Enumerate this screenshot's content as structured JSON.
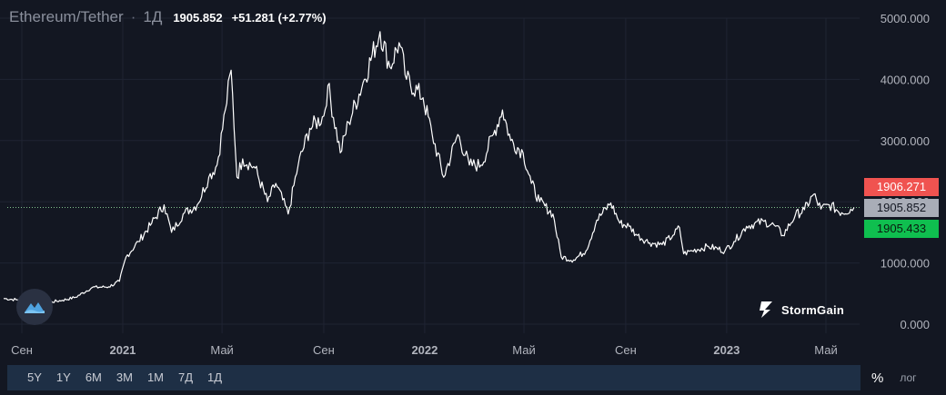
{
  "legend": {
    "symbol": "Ethereum/Tether",
    "separator": "·",
    "interval": "1Д",
    "price": "1905.852",
    "change": "+51.281 (+2.77%)"
  },
  "price_tags": {
    "ask": "1906.271",
    "last": "1905.852",
    "bid": "1905.433"
  },
  "colors": {
    "background": "#131722",
    "line": "#ffffff",
    "grid": "#1f2433",
    "ask": "#f05350",
    "bid": "#0fbf4f",
    "last": "#a9adb7",
    "toolbar": "#1e2f45",
    "dotted_line": "#7fbf8a"
  },
  "watermark": {
    "icon": "stormgain-logo-icon",
    "text": "StormGain"
  },
  "toolbar": {
    "timeframes": [
      "5Y",
      "1Y",
      "6M",
      "3M",
      "1M",
      "7Д",
      "1Д"
    ],
    "percent_label": "%",
    "log_label": "лог"
  },
  "chart_data": {
    "type": "line",
    "title": "",
    "xlabel": "",
    "ylabel": "",
    "ylim": [
      0,
      5000
    ],
    "y_ticks": [
      "0.000",
      "1000.000",
      "2000.000",
      "3000.000",
      "4000.000",
      "5000.000"
    ],
    "x_ticks": [
      {
        "label": "Сен",
        "date": "2020-09-01",
        "bold": false
      },
      {
        "label": "2021",
        "date": "2021-01-01",
        "bold": true
      },
      {
        "label": "Май",
        "date": "2021-05-01",
        "bold": false
      },
      {
        "label": "Сен",
        "date": "2021-09-01",
        "bold": false
      },
      {
        "label": "2022",
        "date": "2022-01-01",
        "bold": true
      },
      {
        "label": "Май",
        "date": "2022-05-01",
        "bold": false
      },
      {
        "label": "Сен",
        "date": "2022-09-01",
        "bold": false
      },
      {
        "label": "2023",
        "date": "2023-01-01",
        "bold": true
      },
      {
        "label": "Май",
        "date": "2023-05-01",
        "bold": false
      }
    ],
    "last_price_line": 1905.852,
    "series": [
      {
        "points": [
          [
            "2020-08-10",
            420
          ],
          [
            "2020-08-25",
            400
          ],
          [
            "2020-09-05",
            360
          ],
          [
            "2020-09-20",
            350
          ],
          [
            "2020-10-05",
            360
          ],
          [
            "2020-10-20",
            390
          ],
          [
            "2020-11-05",
            440
          ],
          [
            "2020-11-25",
            600
          ],
          [
            "2020-12-15",
            610
          ],
          [
            "2020-12-28",
            700
          ],
          [
            "2021-01-05",
            1100
          ],
          [
            "2021-01-20",
            1350
          ],
          [
            "2021-02-05",
            1650
          ],
          [
            "2021-02-20",
            1950
          ],
          [
            "2021-03-01",
            1500
          ],
          [
            "2021-03-15",
            1800
          ],
          [
            "2021-04-01",
            1950
          ],
          [
            "2021-04-15",
            2400
          ],
          [
            "2021-04-25",
            2600
          ],
          [
            "2021-05-05",
            3500
          ],
          [
            "2021-05-12",
            4150
          ],
          [
            "2021-05-19",
            2400
          ],
          [
            "2021-05-26",
            2700
          ],
          [
            "2021-06-10",
            2550
          ],
          [
            "2021-06-25",
            2000
          ],
          [
            "2021-07-05",
            2300
          ],
          [
            "2021-07-20",
            1800
          ],
          [
            "2021-08-01",
            2600
          ],
          [
            "2021-08-15",
            3200
          ],
          [
            "2021-09-01",
            3400
          ],
          [
            "2021-09-06",
            3900
          ],
          [
            "2021-09-21",
            2800
          ],
          [
            "2021-10-01",
            3300
          ],
          [
            "2021-10-20",
            4000
          ],
          [
            "2021-11-08",
            4780
          ],
          [
            "2021-11-20",
            4200
          ],
          [
            "2021-12-01",
            4600
          ],
          [
            "2021-12-10",
            4000
          ],
          [
            "2021-12-30",
            3700
          ],
          [
            "2022-01-10",
            3100
          ],
          [
            "2022-01-24",
            2400
          ],
          [
            "2022-02-10",
            3100
          ],
          [
            "2022-02-24",
            2600
          ],
          [
            "2022-03-10",
            2600
          ],
          [
            "2022-03-25",
            3100
          ],
          [
            "2022-04-05",
            3500
          ],
          [
            "2022-04-15",
            3000
          ],
          [
            "2022-04-30",
            2800
          ],
          [
            "2022-05-10",
            2300
          ],
          [
            "2022-05-20",
            2000
          ],
          [
            "2022-06-05",
            1800
          ],
          [
            "2022-06-15",
            1100
          ],
          [
            "2022-06-30",
            1050
          ],
          [
            "2022-07-15",
            1200
          ],
          [
            "2022-07-28",
            1700
          ],
          [
            "2022-08-14",
            1980
          ],
          [
            "2022-08-25",
            1650
          ],
          [
            "2022-09-05",
            1600
          ],
          [
            "2022-09-15",
            1450
          ],
          [
            "2022-09-30",
            1330
          ],
          [
            "2022-10-15",
            1300
          ],
          [
            "2022-10-28",
            1450
          ],
          [
            "2022-11-05",
            1580
          ],
          [
            "2022-11-10",
            1150
          ],
          [
            "2022-11-20",
            1200
          ],
          [
            "2022-12-10",
            1270
          ],
          [
            "2022-12-30",
            1200
          ],
          [
            "2023-01-10",
            1350
          ],
          [
            "2023-01-25",
            1600
          ],
          [
            "2023-02-15",
            1680
          ],
          [
            "2023-03-01",
            1600
          ],
          [
            "2023-03-10",
            1450
          ],
          [
            "2023-03-25",
            1780
          ],
          [
            "2023-04-05",
            1870
          ],
          [
            "2023-04-16",
            2120
          ],
          [
            "2023-04-25",
            1880
          ],
          [
            "2023-05-05",
            1950
          ],
          [
            "2023-05-20",
            1820
          ],
          [
            "2023-05-31",
            1880
          ],
          [
            "2023-06-04",
            1906
          ]
        ]
      }
    ]
  }
}
